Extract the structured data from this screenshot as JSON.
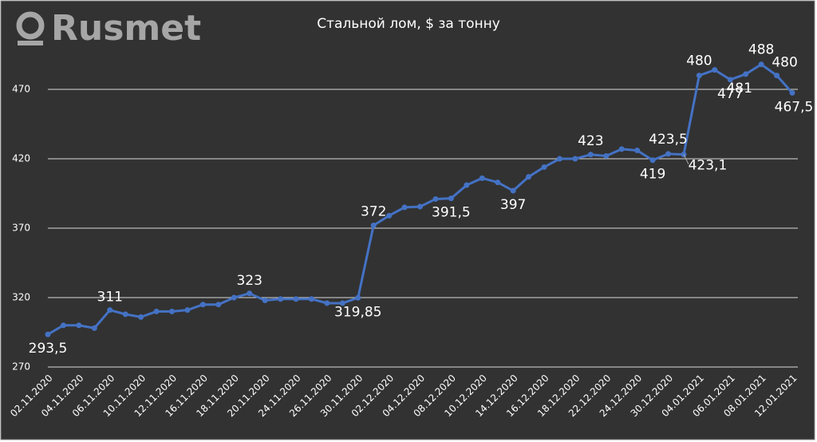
{
  "chart_data": {
    "type": "line",
    "brand": "Rusmet",
    "title": "Стальной лом, $ за тонну",
    "categories": [
      "02.11.2020",
      null,
      "04.11.2020",
      null,
      "06.11.2020",
      null,
      "10.11.2020",
      null,
      "12.11.2020",
      null,
      "16.11.2020",
      null,
      "18.11.2020",
      null,
      "20.11.2020",
      null,
      "24.11.2020",
      null,
      "26.11.2020",
      null,
      "30.11.2020",
      null,
      "02.12.2020",
      null,
      "04.12.2020",
      null,
      "08.12.2020",
      null,
      "10.12.2020",
      null,
      "14.12.2020",
      null,
      "16.12.2020",
      null,
      "18.12.2020",
      null,
      "22.12.2020",
      null,
      "24.12.2020",
      null,
      "30.12.2020",
      null,
      "04.01.2021",
      null,
      "06.01.2021",
      null,
      "08.01.2021",
      null,
      "12.01.2021"
    ],
    "series": [
      {
        "name": "Стальной лом",
        "color": "#4472c4",
        "values": [
          293.5,
          300,
          300,
          298,
          311,
          308,
          306,
          310,
          310,
          311,
          315,
          315,
          320,
          323,
          318,
          319,
          319,
          319,
          316,
          316,
          319.85,
          372,
          379,
          385,
          385.5,
          391,
          391.5,
          401,
          406,
          403,
          397,
          407,
          414,
          420,
          420,
          423,
          422,
          427,
          426,
          419,
          423.5,
          423.1,
          480,
          484,
          477,
          481,
          488,
          480,
          467.5
        ],
        "value_labels": [
          "293,5",
          null,
          null,
          null,
          "311",
          null,
          null,
          null,
          null,
          null,
          null,
          null,
          null,
          "323",
          null,
          null,
          null,
          null,
          null,
          null,
          "319,85",
          "372",
          null,
          null,
          null,
          null,
          "391,5",
          null,
          null,
          null,
          "397",
          null,
          null,
          null,
          null,
          "423",
          null,
          null,
          null,
          "419",
          "423,5",
          "423,1",
          "480",
          null,
          "477",
          "481",
          "488",
          "480",
          "467,5"
        ]
      }
    ],
    "ylim": [
      270,
      520
    ],
    "yticks": [
      270,
      320,
      370,
      420,
      470
    ],
    "grid": true
  }
}
